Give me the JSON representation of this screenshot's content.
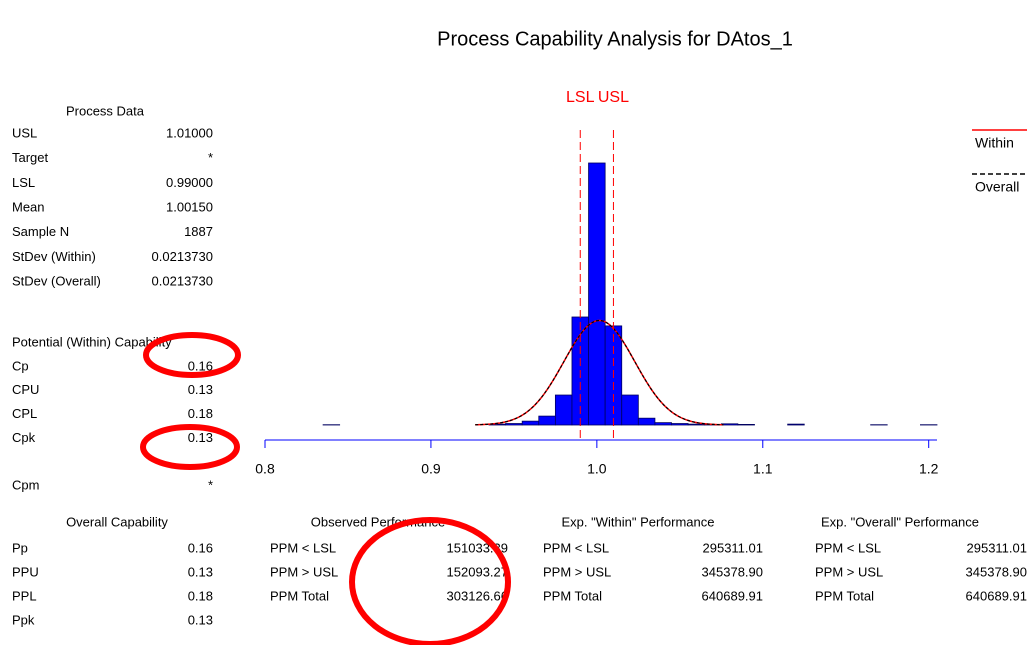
{
  "title": "Process Capability Analysis for DAtos_1",
  "process_data": {
    "heading": "Process Data",
    "rows": [
      [
        "USL",
        "1.01000"
      ],
      [
        "Target",
        "*"
      ],
      [
        "LSL",
        "0.99000"
      ],
      [
        "Mean",
        "1.00150"
      ],
      [
        "Sample N",
        "1887"
      ],
      [
        "StDev (Within)",
        "0.0213730"
      ],
      [
        "StDev (Overall)",
        "0.0213730"
      ]
    ]
  },
  "potential": {
    "heading": "Potential (Within) Capability",
    "rows": [
      [
        "Cp",
        "0.16"
      ],
      [
        "CPU",
        "0.13"
      ],
      [
        "CPL",
        "0.18"
      ],
      [
        "Cpk",
        "0.13"
      ],
      [
        "Cpm",
        "*"
      ]
    ]
  },
  "overall": {
    "heading": "Overall Capability",
    "rows": [
      [
        "Pp",
        "0.16"
      ],
      [
        "PPU",
        "0.13"
      ],
      [
        "PPL",
        "0.18"
      ],
      [
        "Ppk",
        "0.13"
      ]
    ]
  },
  "observed": {
    "heading": "Observed Performance",
    "rows": [
      [
        "PPM < LSL",
        "151033.39"
      ],
      [
        "PPM > USL",
        "152093.27"
      ],
      [
        "PPM Total",
        "303126.66"
      ]
    ]
  },
  "exp_within": {
    "heading": "Exp. \"Within\" Performance",
    "rows": [
      [
        "PPM < LSL",
        "295311.01"
      ],
      [
        "PPM > USL",
        "345378.90"
      ],
      [
        "PPM Total",
        "640689.91"
      ]
    ]
  },
  "exp_overall": {
    "heading": "Exp. \"Overall\" Performance",
    "rows": [
      [
        "PPM < LSL",
        "295311.01"
      ],
      [
        "PPM > USL",
        "345378.90"
      ],
      [
        "PPM Total",
        "640689.91"
      ]
    ]
  },
  "chart_data": {
    "type": "histogram",
    "bins": [
      0.805,
      0.815,
      0.825,
      0.835,
      0.845,
      0.855,
      0.865,
      0.875,
      0.885,
      0.895,
      0.905,
      0.915,
      0.925,
      0.935,
      0.945,
      0.955,
      0.965,
      0.975,
      0.985,
      0.995,
      1.005,
      1.015,
      1.025,
      1.035,
      1.045,
      1.055,
      1.065,
      1.075,
      1.085,
      1.095,
      1.105,
      1.115,
      1.125,
      1.135,
      1.145,
      1.155,
      1.165,
      1.175,
      1.185,
      1.195,
      1.205
    ],
    "values": [
      0,
      0,
      0,
      1,
      0,
      0,
      0,
      0,
      0,
      0,
      0,
      0,
      0,
      3,
      5,
      13,
      30,
      101,
      364,
      883,
      334,
      101,
      23,
      8,
      5,
      3,
      2,
      4,
      2,
      0,
      0,
      3,
      0,
      0,
      0,
      0,
      1,
      0,
      0,
      1
    ],
    "color": "#0000ff",
    "xlim": [
      0.8,
      1.205
    ],
    "xticks": [
      0.8,
      0.9,
      {
        "value": 1,
        "label": "1.0"
      },
      1.1,
      1.2
    ],
    "spec_labels": [
      "LSL",
      "USL"
    ],
    "spec_color": "#ff0000",
    "series": [
      {
        "name": "Within",
        "color": "#ff0000"
      },
      {
        "name": "Overall",
        "color": "#000000"
      }
    ]
  }
}
